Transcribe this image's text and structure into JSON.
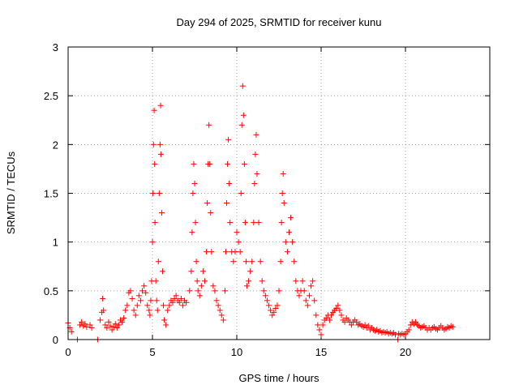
{
  "chart_data": {
    "type": "scatter",
    "title": "Day 294 of 2025, SRMTID for receiver kunu",
    "xlabel": "GPS time / hours",
    "ylabel": "SRMTID / TECUs",
    "xlim": [
      0,
      25
    ],
    "ylim": [
      0,
      3
    ],
    "x_ticks": [
      {
        "value": 0,
        "label": "0"
      },
      {
        "value": 5,
        "label": "5"
      },
      {
        "value": 10,
        "label": "10"
      },
      {
        "value": 15,
        "label": "15"
      },
      {
        "value": 20,
        "label": "20"
      }
    ],
    "y_ticks": [
      {
        "value": 0,
        "label": "0"
      },
      {
        "value": 0.5,
        "label": "0.5"
      },
      {
        "value": 1,
        "label": "1"
      },
      {
        "value": 1.5,
        "label": "1.5"
      },
      {
        "value": 2,
        "label": "2"
      },
      {
        "value": 2.5,
        "label": "2.5"
      },
      {
        "value": 3,
        "label": "3"
      }
    ],
    "grid": true,
    "marker": "+",
    "color": "#ff0000",
    "series": [
      {
        "name": "SRMTID",
        "points": [
          [
            0.0,
            0.17
          ],
          [
            0.1,
            0.12
          ],
          [
            0.2,
            0.08
          ],
          [
            0.55,
            0.0
          ],
          [
            0.7,
            0.15
          ],
          [
            0.8,
            0.18
          ],
          [
            0.9,
            0.14
          ],
          [
            1.0,
            0.16
          ],
          [
            1.1,
            0.13
          ],
          [
            1.3,
            0.15
          ],
          [
            1.4,
            0.12
          ],
          [
            1.75,
            0.0
          ],
          [
            1.9,
            0.2
          ],
          [
            2.0,
            0.28
          ],
          [
            2.05,
            0.42
          ],
          [
            2.1,
            0.3
          ],
          [
            2.2,
            0.15
          ],
          [
            2.3,
            0.12
          ],
          [
            2.4,
            0.18
          ],
          [
            2.5,
            0.14
          ],
          [
            2.6,
            0.1
          ],
          [
            2.7,
            0.13
          ],
          [
            2.8,
            0.16
          ],
          [
            2.9,
            0.12
          ],
          [
            3.0,
            0.15
          ],
          [
            3.1,
            0.2
          ],
          [
            3.2,
            0.18
          ],
          [
            3.3,
            0.22
          ],
          [
            3.4,
            0.3
          ],
          [
            3.5,
            0.35
          ],
          [
            3.6,
            0.48
          ],
          [
            3.7,
            0.5
          ],
          [
            3.8,
            0.42
          ],
          [
            3.9,
            0.3
          ],
          [
            4.0,
            0.25
          ],
          [
            4.1,
            0.35
          ],
          [
            4.2,
            0.45
          ],
          [
            4.3,
            0.4
          ],
          [
            4.4,
            0.5
          ],
          [
            4.5,
            0.55
          ],
          [
            4.6,
            0.48
          ],
          [
            4.7,
            0.35
          ],
          [
            4.8,
            0.3
          ],
          [
            4.85,
            0.25
          ],
          [
            4.9,
            0.4
          ],
          [
            4.95,
            0.6
          ],
          [
            5.0,
            1.0
          ],
          [
            5.03,
            1.5
          ],
          [
            5.06,
            2.0
          ],
          [
            5.1,
            2.35
          ],
          [
            5.13,
            1.8
          ],
          [
            5.15,
            1.2
          ],
          [
            5.2,
            0.6
          ],
          [
            5.25,
            0.4
          ],
          [
            5.3,
            0.3
          ],
          [
            5.35,
            0.8
          ],
          [
            5.4,
            1.5
          ],
          [
            5.45,
            2.0
          ],
          [
            5.48,
            2.4
          ],
          [
            5.5,
            1.9
          ],
          [
            5.55,
            1.3
          ],
          [
            5.6,
            0.7
          ],
          [
            5.65,
            0.35
          ],
          [
            5.7,
            0.2
          ],
          [
            5.8,
            0.15
          ],
          [
            5.9,
            0.3
          ],
          [
            6.0,
            0.35
          ],
          [
            6.1,
            0.4
          ],
          [
            6.2,
            0.38
          ],
          [
            6.3,
            0.42
          ],
          [
            6.4,
            0.45
          ],
          [
            6.5,
            0.4
          ],
          [
            6.6,
            0.38
          ],
          [
            6.7,
            0.42
          ],
          [
            6.8,
            0.35
          ],
          [
            6.9,
            0.4
          ],
          [
            7.0,
            0.38
          ],
          [
            7.2,
            0.5
          ],
          [
            7.3,
            0.7
          ],
          [
            7.35,
            1.1
          ],
          [
            7.4,
            1.5
          ],
          [
            7.45,
            1.8
          ],
          [
            7.5,
            1.6
          ],
          [
            7.55,
            1.2
          ],
          [
            7.6,
            0.8
          ],
          [
            7.65,
            0.6
          ],
          [
            7.7,
            0.5
          ],
          [
            7.8,
            0.45
          ],
          [
            7.9,
            0.55
          ],
          [
            8.0,
            0.7
          ],
          [
            8.1,
            0.6
          ],
          [
            8.2,
            0.9
          ],
          [
            8.25,
            1.4
          ],
          [
            8.3,
            1.8
          ],
          [
            8.35,
            2.2
          ],
          [
            8.4,
            1.8
          ],
          [
            8.45,
            1.3
          ],
          [
            8.5,
            0.9
          ],
          [
            8.6,
            0.55
          ],
          [
            8.7,
            0.5
          ],
          [
            8.8,
            0.4
          ],
          [
            8.9,
            0.35
          ],
          [
            9.0,
            0.3
          ],
          [
            9.1,
            0.25
          ],
          [
            9.2,
            0.2
          ],
          [
            9.3,
            0.5
          ],
          [
            9.35,
            0.9
          ],
          [
            9.4,
            1.4
          ],
          [
            9.45,
            1.8
          ],
          [
            9.5,
            2.05
          ],
          [
            9.55,
            1.6
          ],
          [
            9.6,
            1.2
          ],
          [
            9.7,
            0.9
          ],
          [
            9.8,
            0.8
          ],
          [
            9.9,
            0.9
          ],
          [
            10.0,
            1.1
          ],
          [
            10.1,
            1.0
          ],
          [
            10.2,
            0.9
          ],
          [
            10.25,
            1.5
          ],
          [
            10.3,
            2.2
          ],
          [
            10.35,
            2.6
          ],
          [
            10.4,
            2.3
          ],
          [
            10.45,
            1.8
          ],
          [
            10.5,
            1.2
          ],
          [
            10.55,
            0.8
          ],
          [
            10.6,
            0.55
          ],
          [
            10.7,
            0.6
          ],
          [
            10.8,
            0.7
          ],
          [
            10.9,
            0.8
          ],
          [
            11.0,
            1.2
          ],
          [
            11.05,
            1.6
          ],
          [
            11.1,
            1.9
          ],
          [
            11.15,
            2.1
          ],
          [
            11.2,
            1.7
          ],
          [
            11.3,
            1.2
          ],
          [
            11.4,
            0.8
          ],
          [
            11.5,
            0.6
          ],
          [
            11.6,
            0.5
          ],
          [
            11.7,
            0.45
          ],
          [
            11.8,
            0.4
          ],
          [
            11.9,
            0.35
          ],
          [
            12.0,
            0.3
          ],
          [
            12.1,
            0.25
          ],
          [
            12.2,
            0.28
          ],
          [
            12.3,
            0.32
          ],
          [
            12.4,
            0.35
          ],
          [
            12.5,
            0.5
          ],
          [
            12.6,
            0.8
          ],
          [
            12.65,
            1.2
          ],
          [
            12.7,
            1.5
          ],
          [
            12.75,
            1.7
          ],
          [
            12.8,
            1.4
          ],
          [
            12.9,
            1.0
          ],
          [
            13.0,
            0.9
          ],
          [
            13.1,
            1.1
          ],
          [
            13.2,
            1.25
          ],
          [
            13.3,
            1.0
          ],
          [
            13.4,
            0.8
          ],
          [
            13.5,
            0.6
          ],
          [
            13.6,
            0.5
          ],
          [
            13.7,
            0.45
          ],
          [
            13.8,
            0.5
          ],
          [
            13.9,
            0.6
          ],
          [
            14.0,
            0.5
          ],
          [
            14.1,
            0.4
          ],
          [
            14.2,
            0.35
          ],
          [
            14.3,
            0.45
          ],
          [
            14.4,
            0.55
          ],
          [
            14.5,
            0.6
          ],
          [
            14.6,
            0.4
          ],
          [
            14.7,
            0.25
          ],
          [
            14.8,
            0.15
          ],
          [
            14.9,
            0.1
          ],
          [
            15.0,
            0.05
          ],
          [
            15.1,
            0.15
          ],
          [
            15.2,
            0.2
          ],
          [
            15.3,
            0.22
          ],
          [
            15.4,
            0.25
          ],
          [
            15.5,
            0.2
          ],
          [
            15.6,
            0.25
          ],
          [
            15.7,
            0.28
          ],
          [
            15.8,
            0.3
          ],
          [
            15.9,
            0.32
          ],
          [
            16.0,
            0.35
          ],
          [
            16.1,
            0.3
          ],
          [
            16.2,
            0.25
          ],
          [
            16.3,
            0.2
          ],
          [
            16.4,
            0.18
          ],
          [
            16.5,
            0.22
          ],
          [
            16.6,
            0.2
          ],
          [
            16.7,
            0.18
          ],
          [
            16.8,
            0.15
          ],
          [
            16.9,
            0.18
          ],
          [
            17.0,
            0.2
          ],
          [
            17.1,
            0.18
          ],
          [
            17.2,
            0.15
          ],
          [
            17.3,
            0.16
          ],
          [
            17.4,
            0.14
          ],
          [
            17.5,
            0.13
          ],
          [
            17.6,
            0.15
          ],
          [
            17.7,
            0.12
          ],
          [
            17.8,
            0.14
          ],
          [
            17.9,
            0.1
          ],
          [
            18.0,
            0.12
          ],
          [
            18.1,
            0.1
          ],
          [
            18.2,
            0.09
          ],
          [
            18.3,
            0.1
          ],
          [
            18.4,
            0.08
          ],
          [
            18.5,
            0.09
          ],
          [
            18.6,
            0.07
          ],
          [
            18.7,
            0.08
          ],
          [
            18.8,
            0.07
          ],
          [
            18.9,
            0.08
          ],
          [
            19.0,
            0.06
          ],
          [
            19.1,
            0.07
          ],
          [
            19.2,
            0.06
          ],
          [
            19.3,
            0.07
          ],
          [
            19.4,
            0.05
          ],
          [
            19.55,
            0.0
          ],
          [
            19.6,
            0.06
          ],
          [
            19.7,
            0.05
          ],
          [
            19.8,
            0.06
          ],
          [
            19.9,
            0.05
          ],
          [
            20.0,
            0.06
          ],
          [
            20.1,
            0.08
          ],
          [
            20.2,
            0.1
          ],
          [
            20.3,
            0.15
          ],
          [
            20.4,
            0.18
          ],
          [
            20.5,
            0.16
          ],
          [
            20.6,
            0.18
          ],
          [
            20.7,
            0.15
          ],
          [
            20.8,
            0.14
          ],
          [
            20.9,
            0.12
          ],
          [
            21.0,
            0.13
          ],
          [
            21.1,
            0.14
          ],
          [
            21.2,
            0.12
          ],
          [
            21.3,
            0.1
          ],
          [
            21.4,
            0.12
          ],
          [
            21.5,
            0.1
          ],
          [
            21.6,
            0.12
          ],
          [
            21.7,
            0.13
          ],
          [
            21.8,
            0.11
          ],
          [
            21.9,
            0.1
          ],
          [
            22.0,
            0.12
          ],
          [
            22.1,
            0.14
          ],
          [
            22.2,
            0.12
          ],
          [
            22.3,
            0.1
          ],
          [
            22.4,
            0.11
          ],
          [
            22.5,
            0.13
          ],
          [
            22.6,
            0.12
          ],
          [
            22.7,
            0.14
          ],
          [
            22.8,
            0.13
          ]
        ]
      }
    ]
  }
}
